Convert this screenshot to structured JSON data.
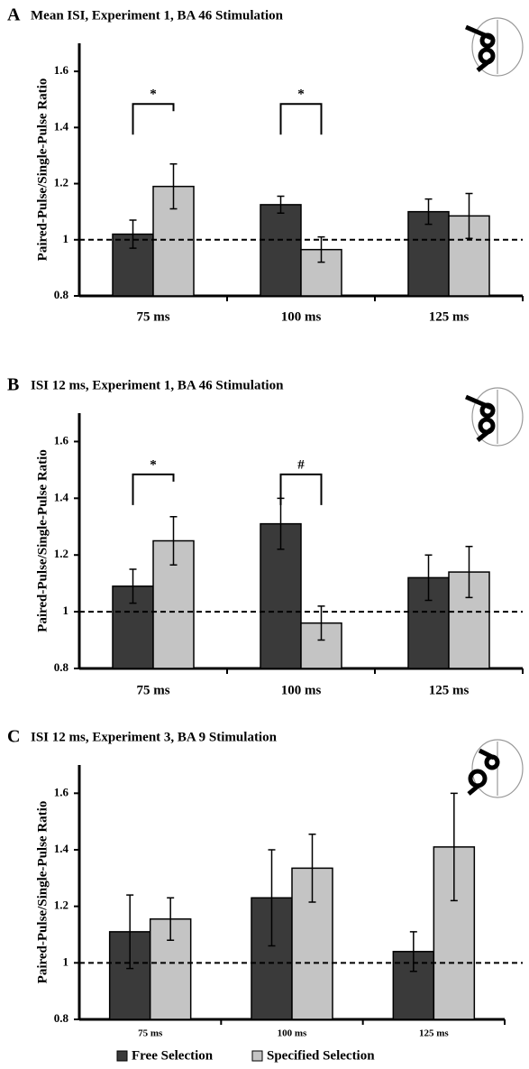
{
  "chart_data": [
    {
      "type": "bar",
      "panel": "A",
      "title": "Mean ISI, Experiment 1, BA 46 Stimulation",
      "y_label": "Paired-Pulse/Single-Pulse Ratio",
      "categories": [
        "75 ms",
        "100 ms",
        "125 ms"
      ],
      "series": [
        {
          "color": "#3a3a3a",
          "values": [
            1.02,
            1.125,
            1.1
          ],
          "errors": [
            0.05,
            0.03,
            0.045
          ]
        },
        {
          "color": "#c4c4c4",
          "values": [
            1.19,
            0.965,
            1.085
          ],
          "errors": [
            0.08,
            0.045,
            0.08
          ]
        }
      ],
      "ylim": [
        0.8,
        1.7
      ],
      "yticks": [
        0.8,
        1,
        1.2,
        1.4,
        1.6
      ],
      "reference_line": 1,
      "annotations": [
        {
          "category": "75 ms",
          "text": "*"
        },
        {
          "category": "100 ms",
          "text": "*"
        }
      ]
    },
    {
      "type": "bar",
      "panel": "B",
      "title": "ISI 12 ms, Experiment 1, BA 46 Stimulation",
      "y_label": "Paired-Pulse/Single-Pulse Ratio",
      "categories": [
        "75 ms",
        "100 ms",
        "125 ms"
      ],
      "series": [
        {
          "color": "#3a3a3a",
          "values": [
            1.09,
            1.31,
            1.12
          ],
          "errors": [
            0.06,
            0.09,
            0.08
          ]
        },
        {
          "color": "#c4c4c4",
          "values": [
            1.25,
            0.96,
            1.14
          ],
          "errors": [
            0.085,
            0.06,
            0.09
          ]
        }
      ],
      "ylim": [
        0.8,
        1.7
      ],
      "yticks": [
        0.8,
        1,
        1.2,
        1.4,
        1.6
      ],
      "reference_line": 1,
      "annotations": [
        {
          "category": "75 ms",
          "text": "*"
        },
        {
          "category": "100 ms",
          "text": "#"
        }
      ]
    },
    {
      "type": "bar",
      "panel": "C",
      "title": "ISI 12 ms, Experiment 3, BA 9 Stimulation",
      "y_label": "Paired-Pulse/Single-Pulse Ratio",
      "categories": [
        "75 ms",
        "100 ms",
        "125 ms"
      ],
      "series": [
        {
          "name": "Free Selection",
          "color": "#3a3a3a",
          "values": [
            1.11,
            1.23,
            1.04
          ],
          "errors": [
            0.13,
            0.17,
            0.07
          ]
        },
        {
          "name": "Specified Selection",
          "color": "#c4c4c4",
          "values": [
            1.155,
            1.335,
            1.41
          ],
          "errors": [
            0.075,
            0.12,
            0.19
          ]
        }
      ],
      "ylim": [
        0.8,
        1.7
      ],
      "yticks": [
        0.8,
        1,
        1.2,
        1.4,
        1.6
      ],
      "reference_line": 1
    }
  ]
}
